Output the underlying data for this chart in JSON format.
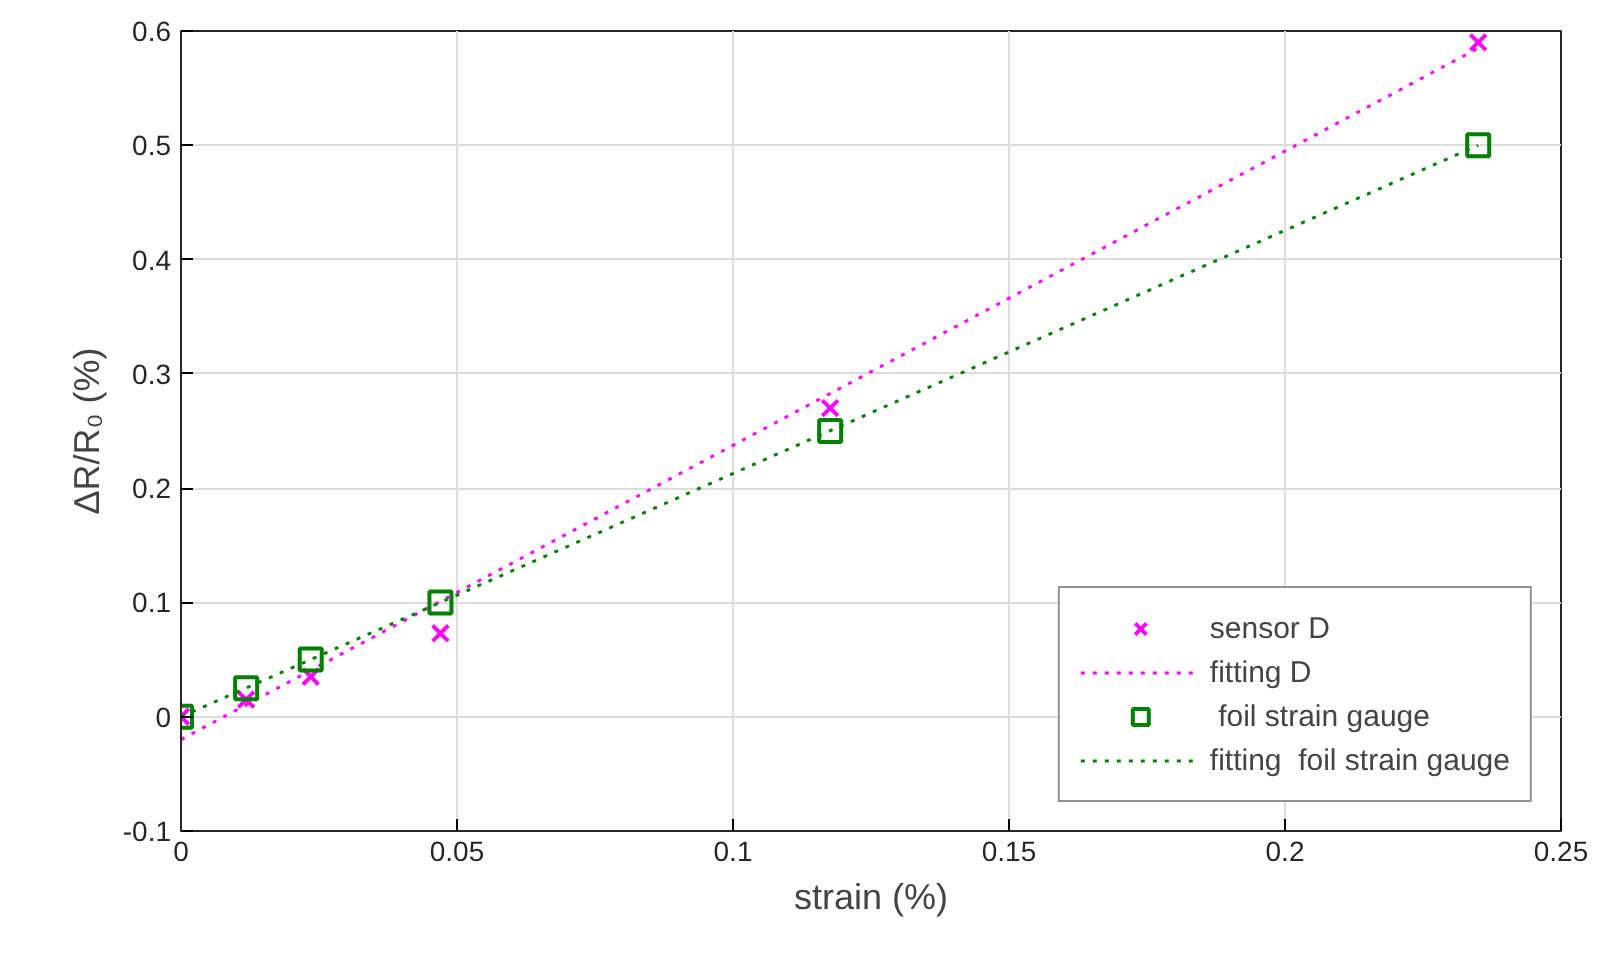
{
  "chart_data": {
    "type": "scatter",
    "xlabel": "strain (%)",
    "ylabel": "ΔR/R₀ (%)",
    "xlim": [
      0,
      0.25
    ],
    "ylim": [
      -0.1,
      0.6
    ],
    "xticks": [
      0,
      0.05,
      0.1,
      0.15,
      0.2,
      0.25
    ],
    "yticks": [
      -0.1,
      0,
      0.1,
      0.2,
      0.3,
      0.4,
      0.5,
      0.6
    ],
    "grid": true,
    "legend": "bottom right",
    "series": [
      {
        "name": "sensor D",
        "marker": "cross",
        "color": "#ff00ff",
        "x": [
          0,
          0.0118,
          0.0235,
          0.047,
          0.1176,
          0.235
        ],
        "values": [
          0,
          0.015,
          0.035,
          0.073,
          0.27,
          0.59
        ]
      },
      {
        "name": "fitting D",
        "type": "line",
        "line_style": "dotted",
        "color": "#ff00ff",
        "x": [
          0,
          0.235
        ],
        "values": [
          -0.02,
          0.585
        ]
      },
      {
        "name": " foil strain gauge",
        "marker": "square",
        "color": "#008000",
        "x": [
          0,
          0.0118,
          0.0235,
          0.047,
          0.1176,
          0.235
        ],
        "values": [
          0,
          0.025,
          0.05,
          0.1,
          0.25,
          0.5
        ]
      },
      {
        "name": "fitting  foil strain gauge",
        "type": "line",
        "line_style": "dotted",
        "color": "#008000",
        "x": [
          0,
          0.235
        ],
        "values": [
          0,
          0.5
        ]
      }
    ]
  }
}
